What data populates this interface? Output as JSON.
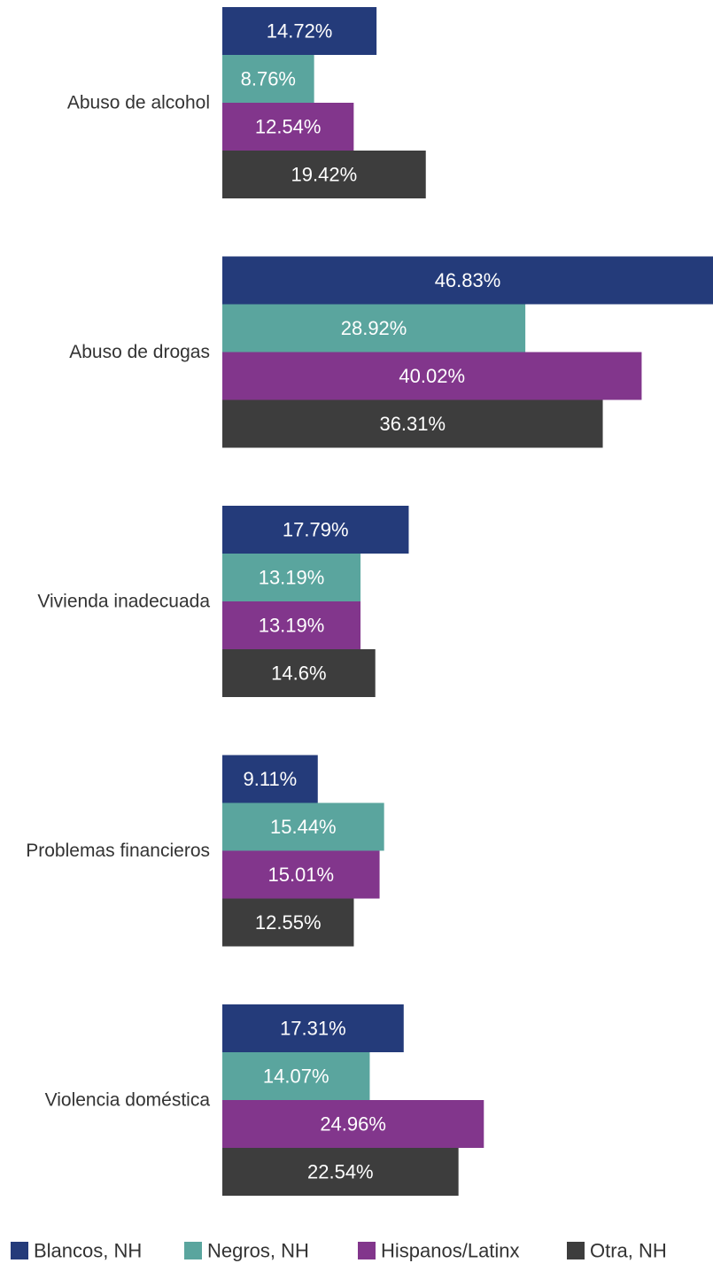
{
  "chart_data": {
    "type": "bar",
    "orientation": "horizontal",
    "categories": [
      "Abuso de alcohol",
      "Abuso de drogas",
      "Vivienda inadecuada",
      "Problemas financieros",
      "Violencia doméstica"
    ],
    "series": [
      {
        "name": "Blancos, NH",
        "color": "#243b7a",
        "values": [
          14.72,
          46.83,
          17.79,
          9.11,
          17.31
        ],
        "labels": [
          "14.72%",
          "46.83%",
          "17.79%",
          "9.11%",
          "17.31%"
        ]
      },
      {
        "name": "Negros, NH",
        "color": "#5aa59e",
        "values": [
          8.76,
          28.92,
          13.19,
          15.44,
          14.07
        ],
        "labels": [
          "8.76%",
          "28.92%",
          "13.19%",
          "15.44%",
          "14.07%"
        ]
      },
      {
        "name": "Hispanos/Latinx",
        "color": "#82368c",
        "values": [
          12.54,
          40.02,
          13.19,
          15.01,
          24.96
        ],
        "labels": [
          "12.54%",
          "40.02%",
          "13.19%",
          "15.01%",
          "24.96%"
        ]
      },
      {
        "name": "Otra, NH",
        "color": "#3d3d3d",
        "values": [
          19.42,
          36.31,
          14.6,
          12.55,
          22.54
        ],
        "labels": [
          "19.42%",
          "36.31%",
          "14.6%",
          "12.55%",
          "22.54%"
        ]
      }
    ],
    "xlim": [
      0,
      46.83
    ],
    "grid": false,
    "legend_position": "bottom"
  }
}
